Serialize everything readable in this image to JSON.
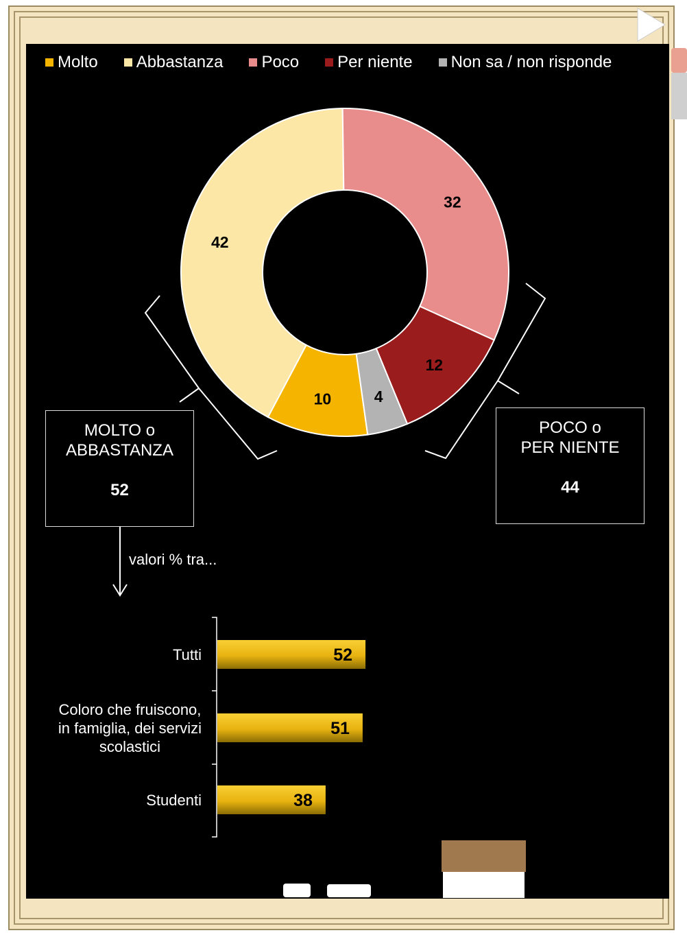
{
  "colors": {
    "molto": "#f4b400",
    "abbastanza": "#fce7a6",
    "poco": "#e88c8c",
    "per_niente": "#9b1c1c",
    "non_sa": "#b3b3b3",
    "bar_top": "#f9cf34",
    "bar_bottom": "#8b6d05"
  },
  "legend": {
    "molto": "Molto",
    "abbastanza": "Abbastanza",
    "poco": "Poco",
    "per_niente": "Per niente",
    "non_sa": "Non sa / non risponde"
  },
  "summary": {
    "left": {
      "line1": "MOLTO o",
      "line2": "ABBASTANZA",
      "value": "52"
    },
    "right": {
      "line1": "POCO o",
      "line2": "PER NIENTE",
      "value": "44"
    }
  },
  "note": "valori  % tra...",
  "chart_data": [
    {
      "type": "pie",
      "donut": true,
      "labels": [
        "Molto",
        "Abbastanza",
        "Poco",
        "Per niente",
        "Non sa / non risponde"
      ],
      "values": [
        10,
        42,
        32,
        12,
        4
      ]
    },
    {
      "type": "bar",
      "orientation": "horizontal",
      "categories": [
        "Tutti",
        "Coloro che fruiscono, in famiglia, dei servizi scolastici",
        "Studenti"
      ],
      "category_lines": [
        [
          "Tutti"
        ],
        [
          "Coloro che fruiscono,",
          "in famiglia, dei servizi",
          "scolastici"
        ],
        [
          "Studenti"
        ]
      ],
      "values": [
        52,
        51,
        38
      ],
      "xlim": [
        0,
        100
      ]
    }
  ]
}
